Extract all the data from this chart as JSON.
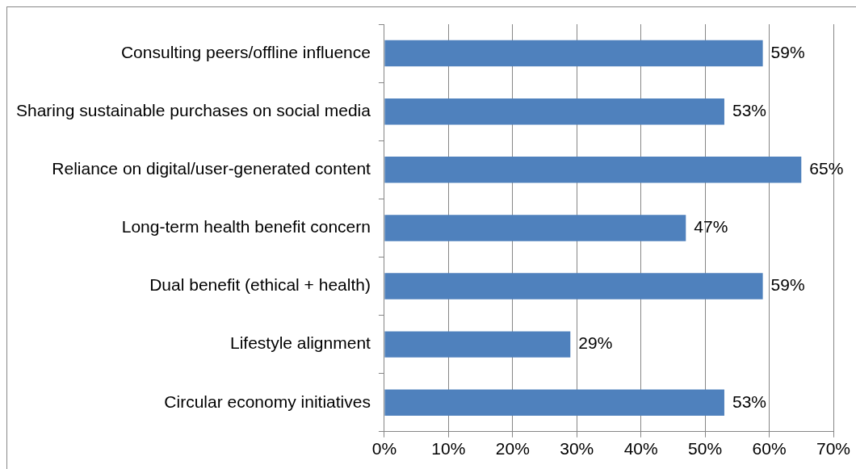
{
  "chart_data": {
    "type": "bar",
    "orientation": "horizontal",
    "categories": [
      "Consulting peers/offline influence",
      "Sharing sustainable purchases on social media",
      "Reliance on digital/user-generated content",
      "Long-term health benefit concern",
      "Dual benefit (ethical + health)",
      "Lifestyle alignment",
      "Circular economy initiatives"
    ],
    "values": [
      59,
      53,
      65,
      47,
      59,
      29,
      53
    ],
    "value_labels": [
      "59%",
      "53%",
      "65%",
      "47%",
      "59%",
      "29%",
      "53%"
    ],
    "color": "#4f81bd",
    "xlim": [
      0,
      70
    ],
    "xticks": [
      {
        "value": 0,
        "label": "0%"
      },
      {
        "value": 10,
        "label": "10%"
      },
      {
        "value": 20,
        "label": "20%"
      },
      {
        "value": 30,
        "label": "30%"
      },
      {
        "value": 40,
        "label": "40%"
      },
      {
        "value": 50,
        "label": "50%"
      },
      {
        "value": 60,
        "label": "60%"
      },
      {
        "value": 70,
        "label": "70%"
      }
    ],
    "grid": "x",
    "legend": false
  }
}
